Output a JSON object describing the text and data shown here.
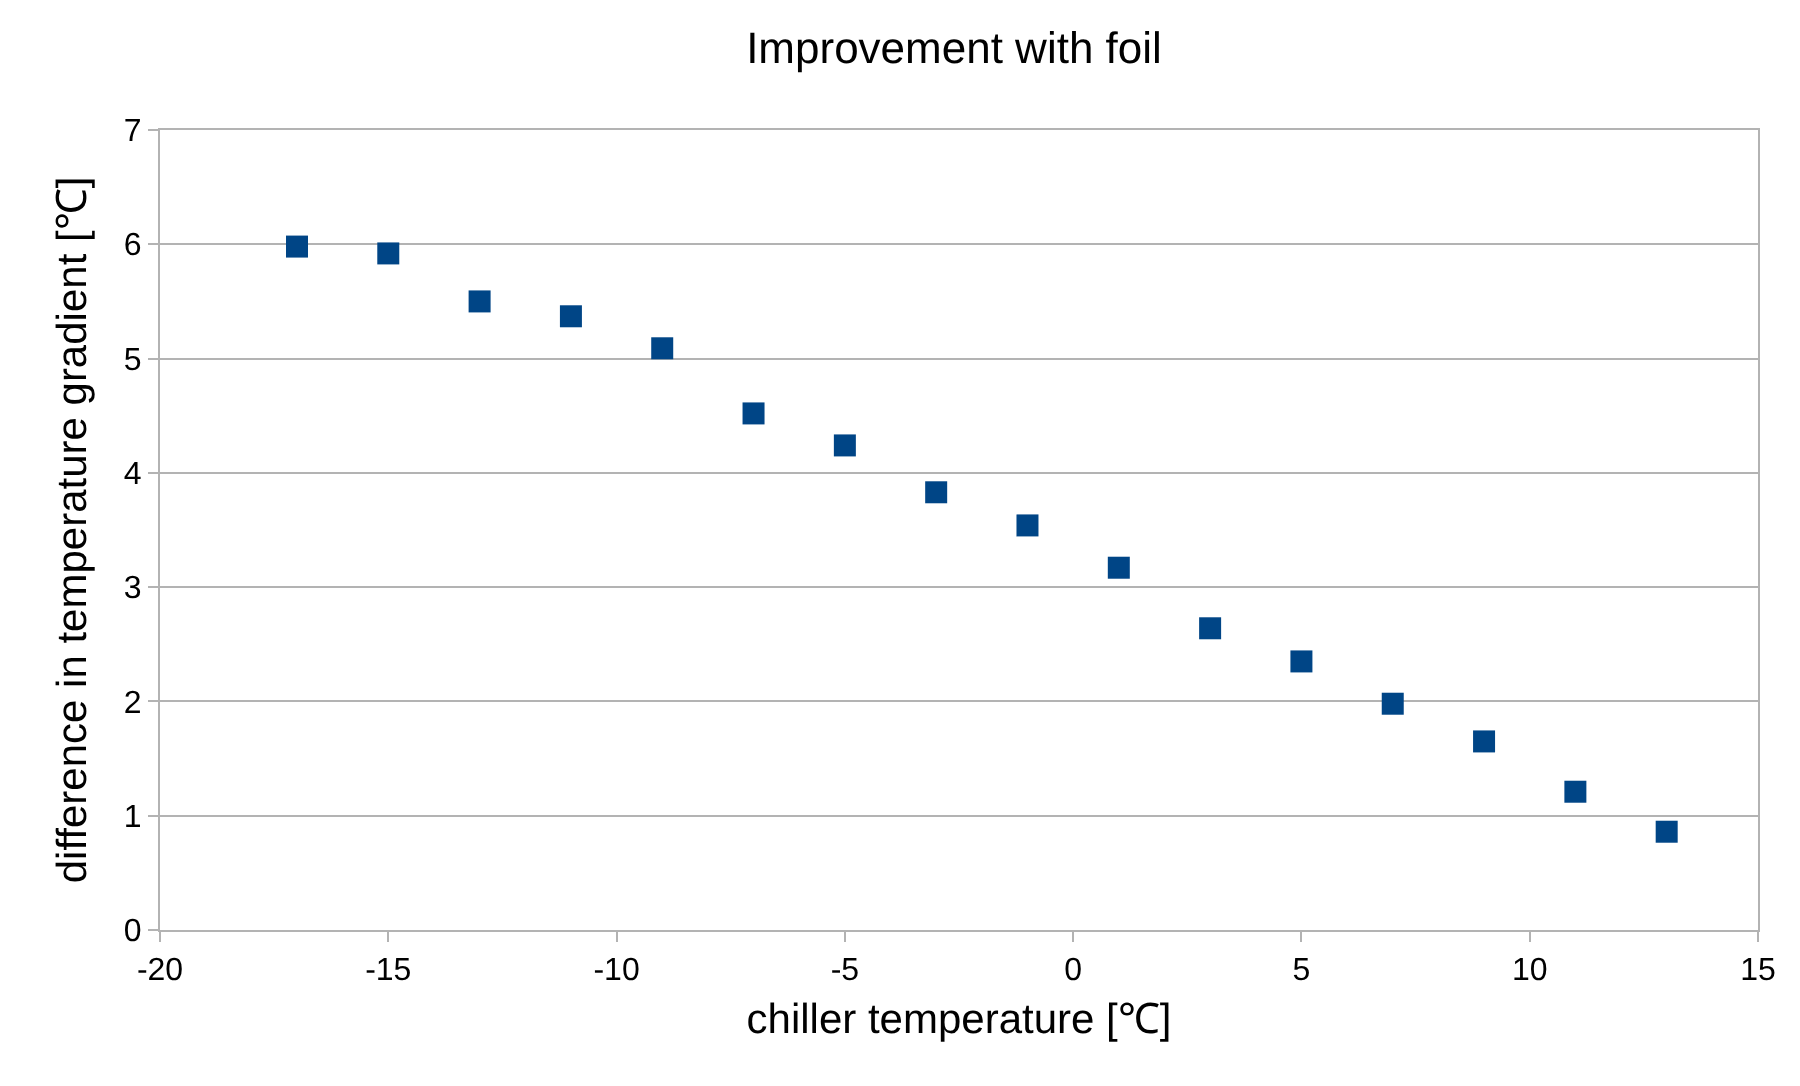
{
  "chart_data": {
    "type": "scatter",
    "title": "Improvement with foil",
    "xlabel": "chiller temperature [℃]",
    "ylabel": "difference in temperature gradient [℃]",
    "x": [
      -17,
      -15,
      -13,
      -11,
      -9,
      -7,
      -5,
      -3,
      -1,
      1,
      3,
      5,
      7,
      9,
      11,
      13
    ],
    "series": [
      {
        "color": "#004586",
        "values": [
          5.98,
          5.92,
          5.5,
          5.37,
          5.09,
          4.52,
          4.24,
          3.83,
          3.54,
          3.17,
          2.64,
          2.35,
          1.98,
          1.65,
          1.21,
          0.86
        ]
      }
    ],
    "xlim": [
      -20,
      15
    ],
    "xticks": [
      -20,
      -15,
      -10,
      -5,
      0,
      5,
      10,
      15
    ],
    "ylim": [
      0,
      7
    ],
    "yticks": [
      0,
      1,
      2,
      3,
      4,
      5,
      6,
      7
    ],
    "grid": "y",
    "marker": "square"
  }
}
